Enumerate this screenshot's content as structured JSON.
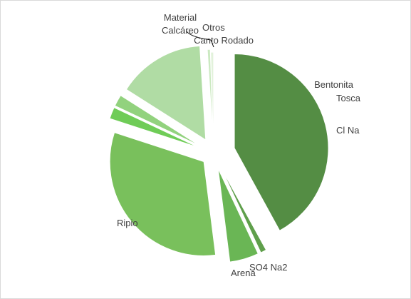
{
  "chart_data": {
    "type": "pie",
    "categories": [
      "Cl Na",
      "SO4 Na2",
      "Arena",
      "Ripio",
      "Tosca",
      "Bentonita",
      "Canto Rodado",
      "Material Calcáreo",
      "Otros"
    ],
    "values": [
      42,
      1,
      5,
      32,
      2,
      2,
      15,
      0.5,
      0.5
    ],
    "colors": [
      "#548d44",
      "#5f9f4b",
      "#6ab655",
      "#79c05c",
      "#6fcc57",
      "#92d27e",
      "#b0dca4",
      "#cbe9c1",
      "#e2f2db"
    ]
  }
}
